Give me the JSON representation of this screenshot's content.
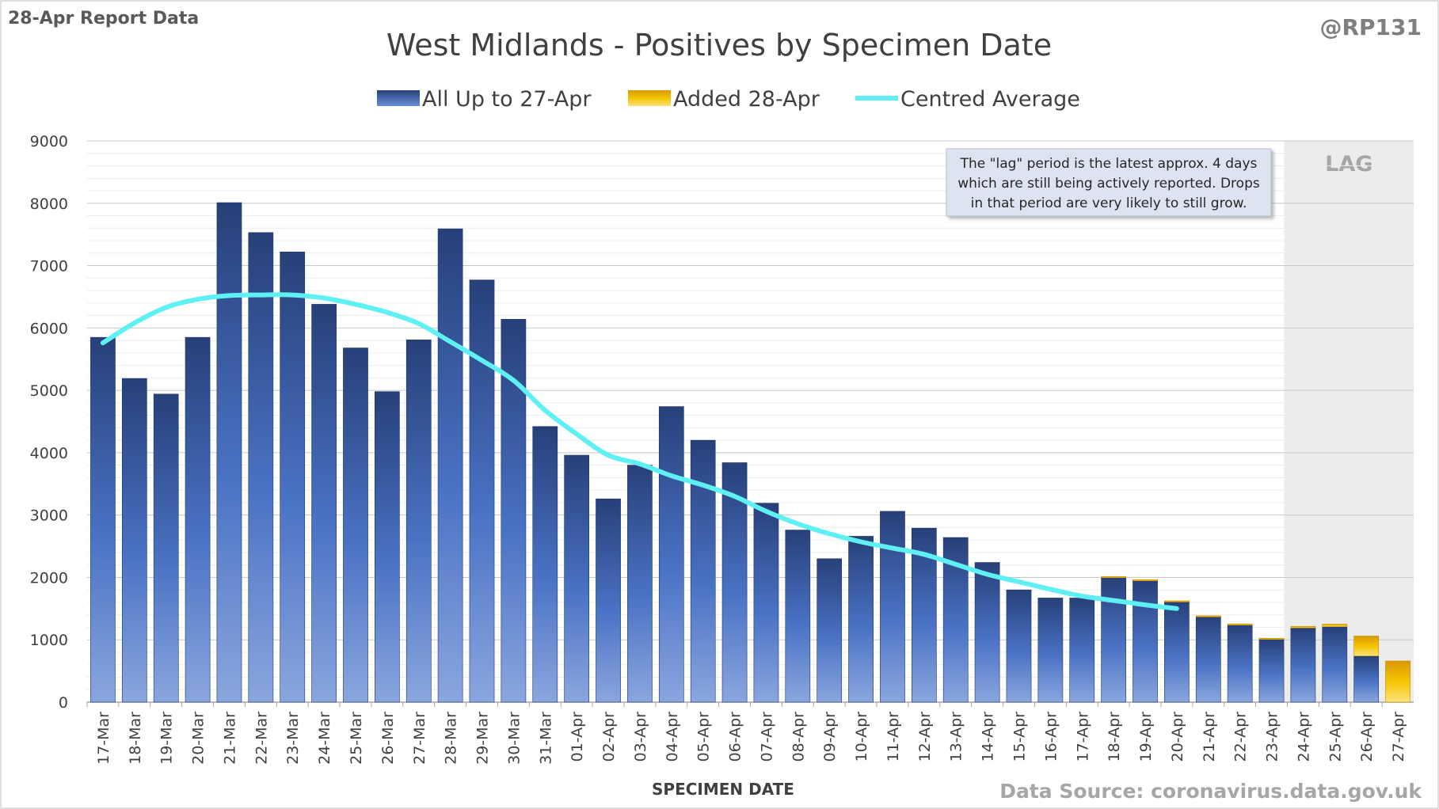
{
  "header": {
    "report_label": "28-Apr Report Data",
    "handle": "@RP131"
  },
  "footer": {
    "source": "Data Source: coronavirus.data.gov.uk"
  },
  "annotation": {
    "lag_label": "LAG",
    "lines": [
      "The \"lag\" period is the latest approx. 4 days",
      "which are still being actively reported.  Drops",
      "in that period are very likely to still grow."
    ]
  },
  "colors": {
    "bar_dark": "#274079",
    "bar_mid": "#4a72c4",
    "bar_light": "#8aa6de",
    "added_dark": "#f0b400",
    "added_light": "#fbe27a",
    "line": "#5ff0f4",
    "lag_band": "#ececec",
    "grid": "#d9d9d9"
  },
  "chart_data": {
    "type": "bar",
    "title": "West Midlands - Positives by Specimen Date",
    "xlabel": "SPECIMEN DATE",
    "ylabel": "",
    "ylim": [
      0,
      9000
    ],
    "yticks": [
      0,
      1000,
      2000,
      3000,
      4000,
      5000,
      6000,
      7000,
      8000,
      9000
    ],
    "grid": true,
    "legend_position": "top-center",
    "lag_categories": [
      "24-Apr",
      "25-Apr",
      "26-Apr",
      "27-Apr"
    ],
    "categories": [
      "17-Mar",
      "18-Mar",
      "19-Mar",
      "20-Mar",
      "21-Mar",
      "22-Mar",
      "23-Mar",
      "24-Mar",
      "25-Mar",
      "26-Mar",
      "27-Mar",
      "28-Mar",
      "29-Mar",
      "30-Mar",
      "31-Mar",
      "01-Apr",
      "02-Apr",
      "03-Apr",
      "04-Apr",
      "05-Apr",
      "06-Apr",
      "07-Apr",
      "08-Apr",
      "09-Apr",
      "10-Apr",
      "11-Apr",
      "12-Apr",
      "13-Apr",
      "14-Apr",
      "15-Apr",
      "16-Apr",
      "17-Apr",
      "18-Apr",
      "19-Apr",
      "20-Apr",
      "21-Apr",
      "22-Apr",
      "23-Apr",
      "24-Apr",
      "25-Apr",
      "26-Apr",
      "27-Apr"
    ],
    "series": [
      {
        "name": "All Up to 27-Apr",
        "values": [
          5850,
          5190,
          4940,
          5850,
          8010,
          7530,
          7220,
          6380,
          5680,
          4980,
          5810,
          7590,
          6770,
          6140,
          4420,
          3960,
          3260,
          3800,
          4740,
          4200,
          3840,
          3190,
          2760,
          2300,
          2660,
          3060,
          2790,
          2640,
          2240,
          1800,
          1670,
          1670,
          2000,
          1950,
          1610,
          1370,
          1240,
          1010,
          1190,
          1210,
          740,
          0
        ]
      },
      {
        "name": "Added 28-Apr",
        "values": [
          0,
          0,
          0,
          0,
          0,
          0,
          0,
          0,
          0,
          0,
          0,
          0,
          0,
          0,
          0,
          0,
          0,
          0,
          0,
          0,
          0,
          0,
          0,
          0,
          0,
          0,
          0,
          0,
          0,
          0,
          0,
          0,
          15,
          15,
          15,
          15,
          15,
          15,
          25,
          40,
          320,
          660
        ]
      },
      {
        "name": "Centred Average",
        "type": "line",
        "values": [
          5760,
          6080,
          6330,
          6460,
          6520,
          6530,
          6530,
          6480,
          6380,
          6250,
          6070,
          5780,
          5480,
          5160,
          4680,
          4300,
          3960,
          3820,
          3630,
          3480,
          3300,
          3060,
          2860,
          2700,
          2570,
          2470,
          2370,
          2210,
          2050,
          1930,
          1810,
          1700,
          1630,
          1560,
          1500,
          null,
          null,
          null,
          null,
          null,
          null,
          null
        ]
      }
    ]
  }
}
